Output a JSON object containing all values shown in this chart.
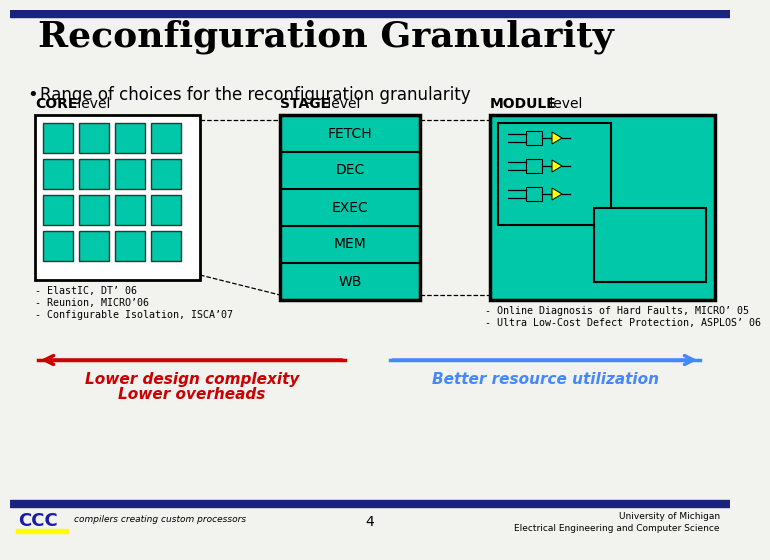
{
  "title": "Reconfiguration Granularity",
  "bullet": "Range of choices for the reconfiguration granularity",
  "bg_color": "#f2f2ee",
  "top_bar_color": "#1a237e",
  "bottom_bar_color": "#1a237e",
  "teal": "#00c8a8",
  "core_label_bold": "CORE",
  "core_label_normal": " level",
  "stage_label_bold": "STAGE",
  "stage_label_normal": " level",
  "module_label_bold": "MODULE",
  "module_label_normal": " level",
  "stage_items": [
    "FETCH",
    "DEC",
    "EXEC",
    "MEM",
    "WB"
  ],
  "core_refs": [
    "- ElastIC, DT’ 06",
    "- Reunion, MICRO’06",
    "- Configurable Isolation, ISCA’07"
  ],
  "module_refs": [
    "- Online Diagnosis of Hard Faults, MICRO’ 05",
    "- Ultra Low-Cost Defect Protection, ASPLOS’ 06"
  ],
  "left_arrow_label1": "Lower design complexity",
  "left_arrow_label2": "Lower overheads",
  "right_arrow_label": "Better resource utilization",
  "left_arrow_color": "#cc0000",
  "right_arrow_color": "#4488ff",
  "footer_number": "4",
  "footer_left1": "compilers creating custom processors",
  "footer_right1": "University of Michigan",
  "footer_right2": "Electrical Engineering and Computer Science"
}
